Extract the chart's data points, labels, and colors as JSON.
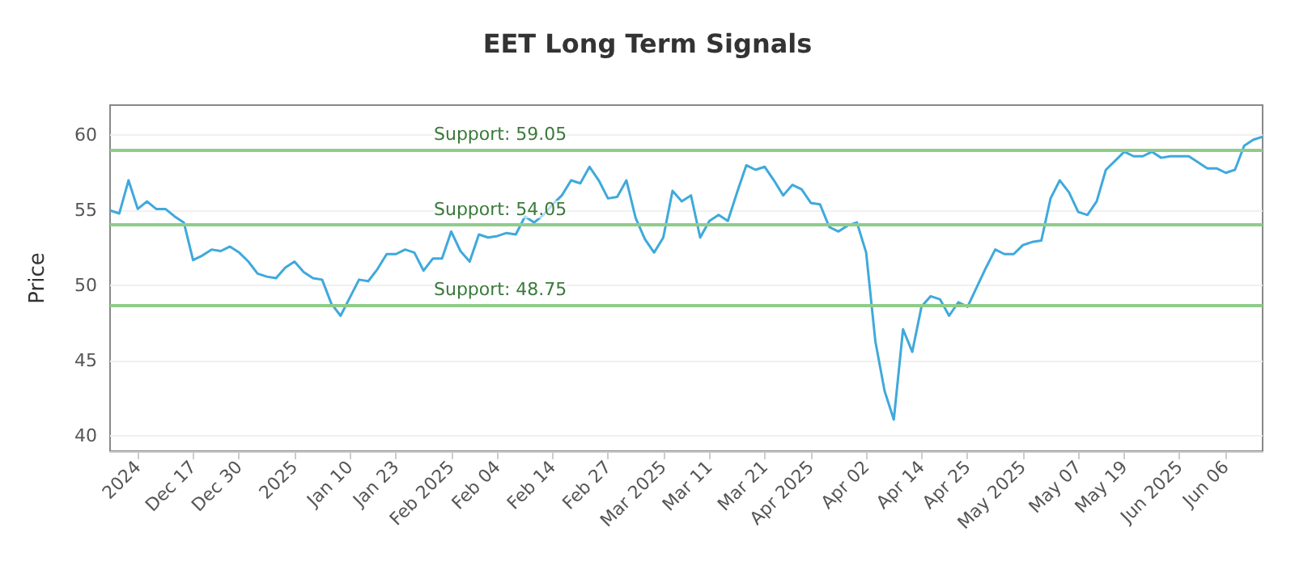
{
  "chart_data": {
    "type": "line",
    "title": "EET Long Term Signals",
    "ylabel": "Price",
    "categories": [
      null,
      null,
      null,
      "2024",
      null,
      null,
      null,
      null,
      null,
      "Dec 17",
      null,
      null,
      null,
      null,
      "Dec 30",
      null,
      null,
      null,
      null,
      null,
      "2025",
      null,
      null,
      null,
      null,
      null,
      "Jan 10",
      null,
      null,
      null,
      null,
      "Jan 23",
      null,
      null,
      null,
      null,
      null,
      "Feb 2025",
      null,
      null,
      null,
      null,
      "Feb 04",
      null,
      null,
      null,
      null,
      null,
      "Feb 14",
      null,
      null,
      null,
      null,
      null,
      "Feb 27",
      null,
      null,
      null,
      null,
      null,
      "Mar 2025",
      null,
      null,
      null,
      null,
      "Mar 11",
      null,
      null,
      null,
      null,
      null,
      "Mar 21",
      null,
      null,
      null,
      null,
      "Apr 2025",
      null,
      null,
      null,
      null,
      null,
      "Apr 02",
      null,
      null,
      null,
      null,
      null,
      "Apr 14",
      null,
      null,
      null,
      null,
      "Apr 25",
      null,
      null,
      null,
      null,
      null,
      "May 2025",
      null,
      null,
      null,
      null,
      null,
      "May 07",
      null,
      null,
      null,
      null,
      "May 19",
      null,
      null,
      null,
      null,
      null,
      "Jun 2025",
      null,
      null,
      null,
      null,
      "Jun 06",
      null,
      null,
      null,
      null
    ],
    "series": [
      {
        "color": "#3fa9dc",
        "values": [
          55.0,
          54.8,
          57.0,
          55.1,
          55.6,
          55.1,
          55.1,
          54.6,
          54.2,
          51.7,
          52.0,
          52.4,
          52.3,
          52.6,
          52.2,
          51.6,
          50.8,
          50.6,
          50.5,
          51.2,
          51.6,
          50.9,
          50.5,
          50.4,
          48.8,
          48.0,
          49.2,
          50.4,
          50.3,
          51.1,
          52.1,
          52.1,
          52.4,
          52.2,
          51.0,
          51.8,
          51.8,
          53.6,
          52.3,
          51.6,
          53.4,
          53.2,
          53.3,
          53.5,
          53.4,
          54.6,
          54.2,
          54.7,
          55.4,
          56.0,
          57.0,
          56.8,
          57.9,
          57.0,
          55.8,
          55.9,
          57.0,
          54.5,
          53.1,
          52.2,
          53.2,
          56.3,
          55.6,
          56.0,
          53.2,
          54.3,
          54.7,
          54.3,
          56.2,
          58.0,
          57.7,
          57.9,
          57.0,
          56.0,
          56.7,
          56.4,
          55.5,
          55.4,
          53.9,
          53.6,
          54.0,
          54.2,
          52.2,
          46.3,
          43.0,
          41.1,
          47.1,
          45.6,
          48.6,
          49.3,
          49.1,
          48.0,
          48.9,
          48.6,
          49.9,
          51.2,
          52.4,
          52.1,
          52.1,
          52.7,
          52.9,
          53.0,
          55.8,
          57.0,
          56.2,
          54.9,
          54.7,
          55.6,
          57.7,
          58.3,
          58.9,
          58.6,
          58.6,
          58.9,
          58.5,
          58.6,
          58.6,
          58.6,
          58.2,
          57.8,
          57.8,
          57.5,
          57.7,
          59.3,
          59.7,
          59.9
        ]
      }
    ],
    "ylim": [
      39,
      62
    ],
    "yticks": [
      40,
      45,
      50,
      55,
      60
    ],
    "grid": "y",
    "marker": "none",
    "line_style": "solid",
    "ref_lines": [
      {
        "axis": "y",
        "value": 59.05,
        "label": "Support: 59.05",
        "color": "#8fcc8a"
      },
      {
        "axis": "y",
        "value": 54.05,
        "label": "Support: 54.05",
        "color": "#8fcc8a"
      },
      {
        "axis": "y",
        "value": 48.75,
        "label": "Support: 48.75",
        "color": "#8fcc8a"
      }
    ]
  }
}
